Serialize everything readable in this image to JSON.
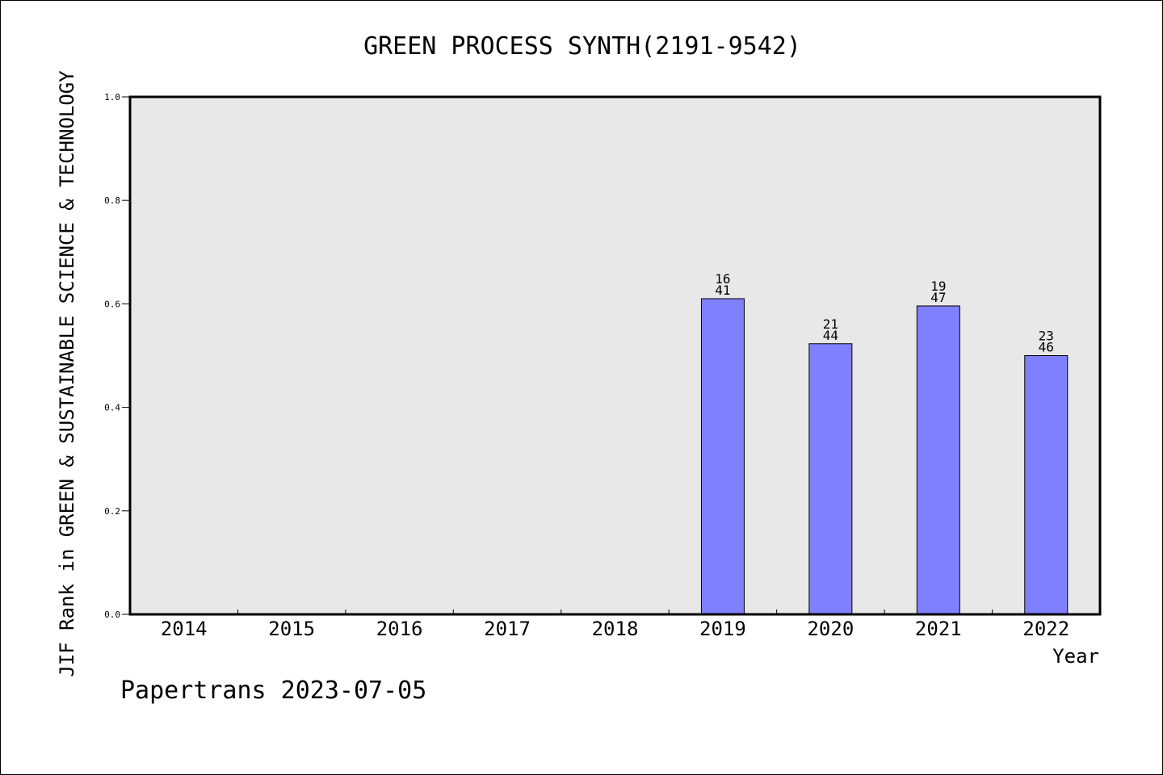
{
  "chart_data": {
    "type": "bar",
    "title": "GREEN PROCESS SYNTH(2191-9542)",
    "ylabel": "JIF Rank in GREEN & SUSTAINABLE SCIENCE & TECHNOLOGY",
    "xlabel": "Year",
    "categories": [
      "2014",
      "2015",
      "2016",
      "2017",
      "2018",
      "2019",
      "2020",
      "2021",
      "2022"
    ],
    "values": [
      null,
      null,
      null,
      null,
      null,
      0.61,
      0.523,
      0.596,
      0.5
    ],
    "labels": [
      null,
      null,
      null,
      null,
      null,
      [
        "16",
        "41"
      ],
      [
        "21",
        "44"
      ],
      [
        "19",
        "47"
      ],
      [
        "23",
        "46"
      ]
    ],
    "ylim": [
      0,
      1.0
    ],
    "yticks": [
      "0.0",
      "0.2",
      "0.4",
      "0.6",
      "0.8",
      "1.0"
    ],
    "grid": false,
    "colors": {
      "bar": "#8080ff",
      "plot_bg": "#e8e8e8",
      "axis": "#000000"
    }
  },
  "footer": {
    "text": "Papertrans 2023-07-05"
  }
}
